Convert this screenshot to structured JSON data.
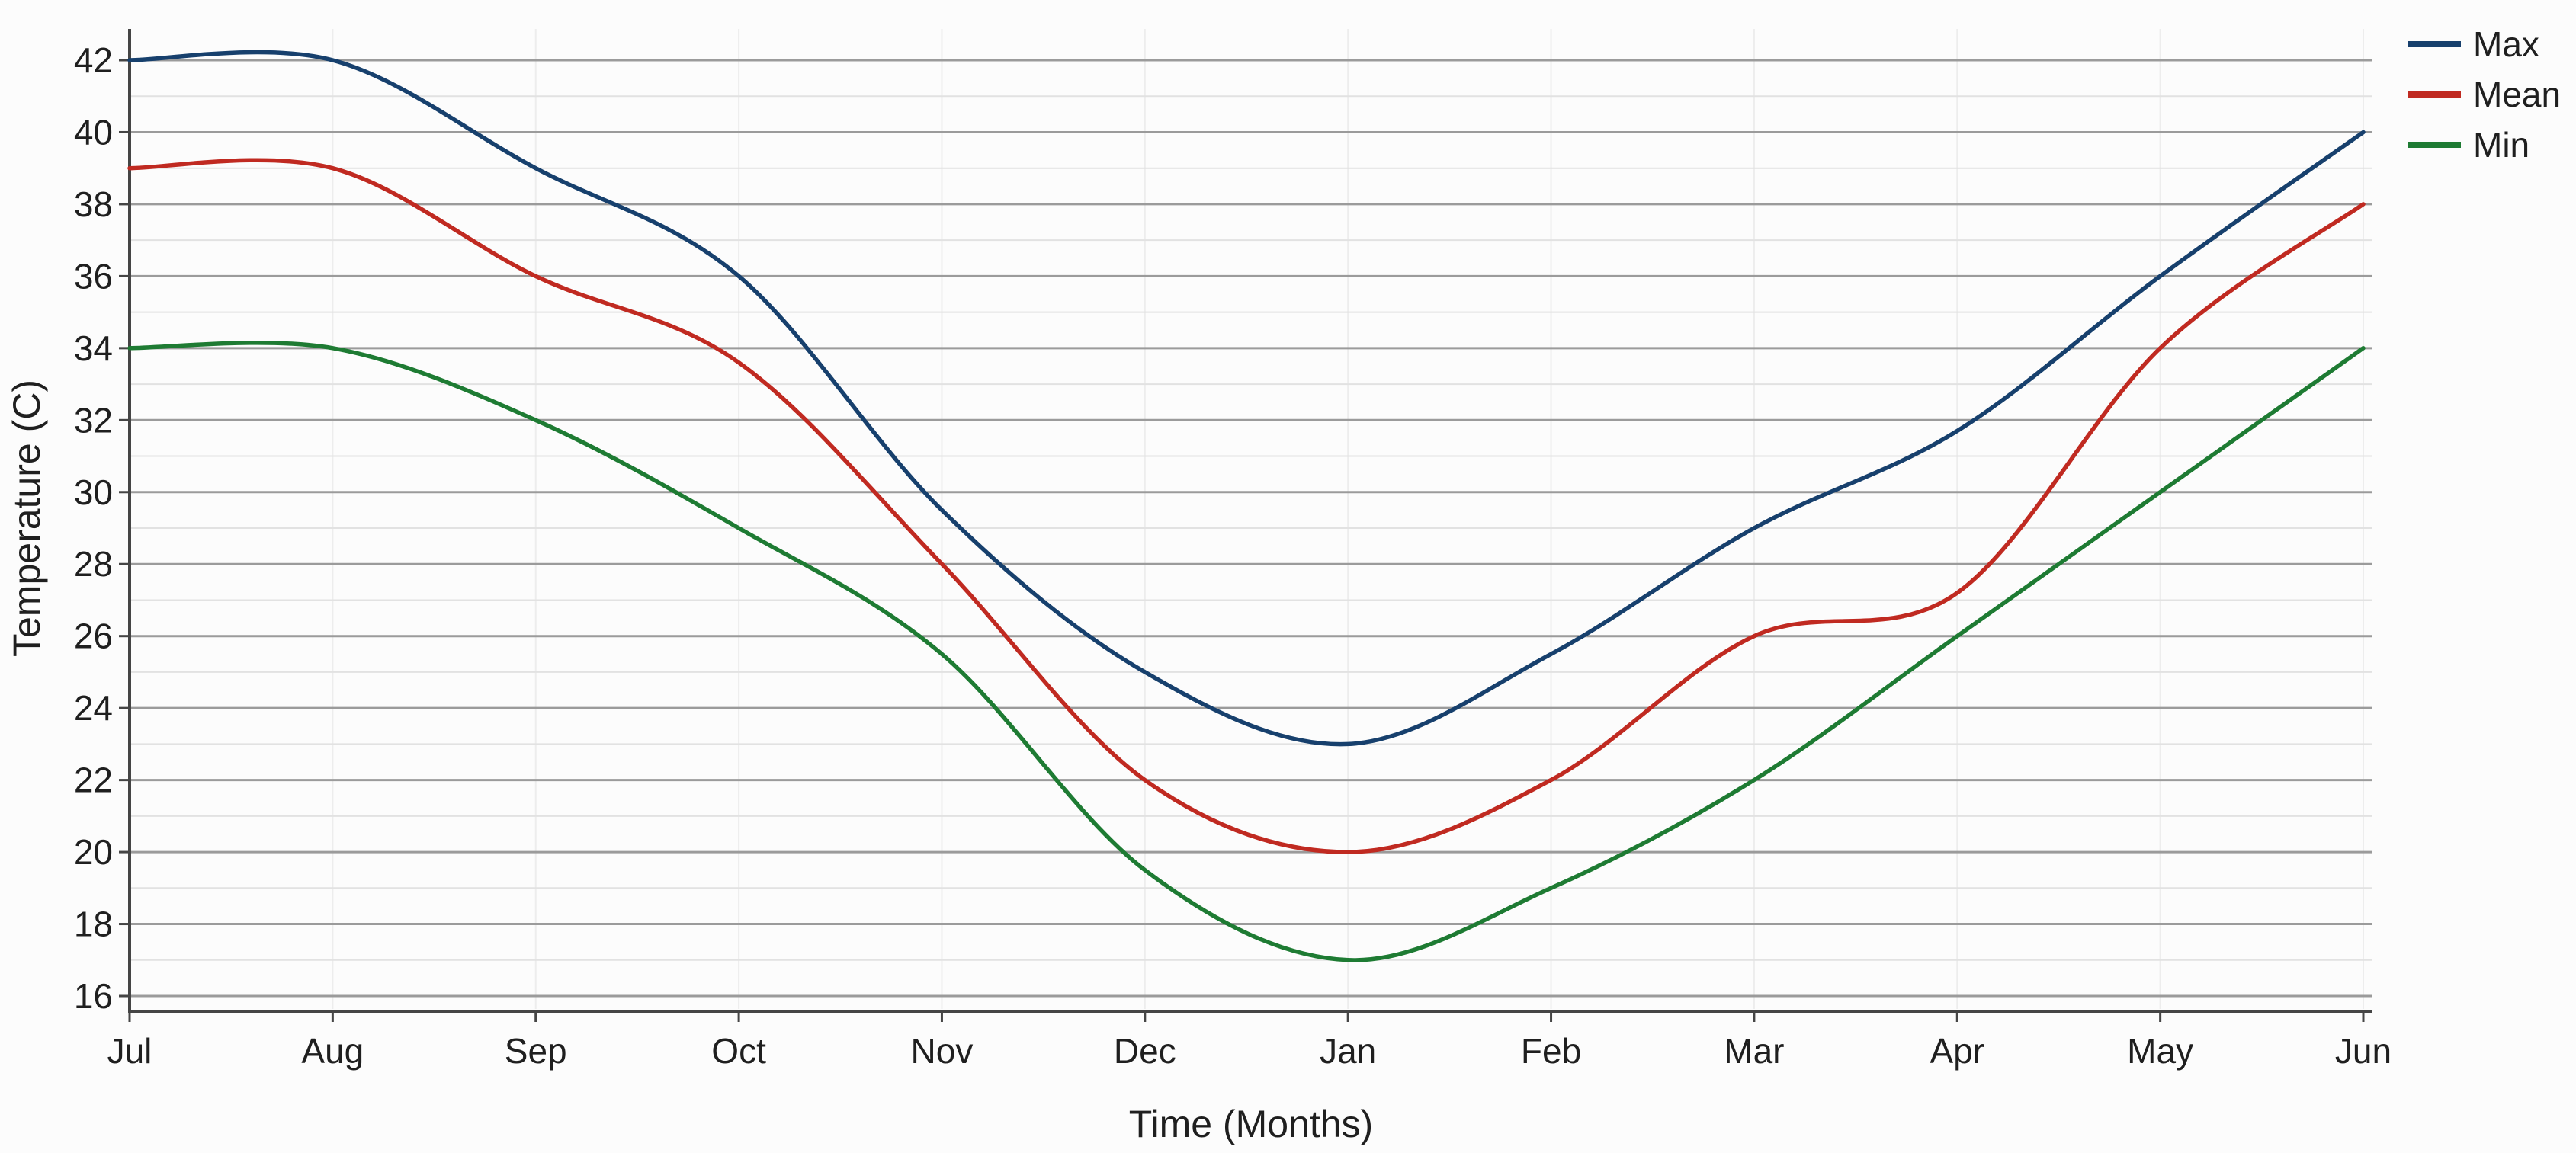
{
  "chart_data": {
    "type": "line",
    "title": "",
    "xlabel": "Time (Months)",
    "ylabel": "Temperature (C)",
    "categories": [
      "Jul",
      "Aug",
      "Sep",
      "Oct",
      "Nov",
      "Dec",
      "Jan",
      "Feb",
      "Mar",
      "Apr",
      "May",
      "Jun"
    ],
    "series": [
      {
        "name": "Max",
        "color": "#17406d",
        "values": [
          42,
          42,
          39,
          36,
          29.5,
          25,
          23,
          25.5,
          29,
          31.7,
          36,
          40
        ]
      },
      {
        "name": "Mean",
        "color": "#c02a21",
        "values": [
          39,
          39,
          36,
          33.6,
          28,
          22,
          20,
          22,
          26,
          27.2,
          34,
          38
        ]
      },
      {
        "name": "Min",
        "color": "#1e7b33",
        "values": [
          34,
          34,
          32,
          29,
          25.5,
          19.5,
          17,
          19,
          22,
          26,
          30,
          34
        ]
      }
    ],
    "ylim": [
      16,
      42
    ],
    "ytick_step": 2,
    "ytick_labels": [
      "16",
      "18",
      "20",
      "22",
      "24",
      "26",
      "28",
      "30",
      "32",
      "34",
      "36",
      "38",
      "40",
      "42"
    ],
    "grid": {
      "major_h": "on",
      "minor_h": "on",
      "vertical_per_month": "on"
    },
    "legend_position": "top-right-outside",
    "colors": {
      "major_grid": "#9b9b9b",
      "minor_grid": "#e2e2e2",
      "vertical_grid": "#ededed",
      "axis_line": "#454545",
      "text": "#1f1f1f",
      "background": "#fcfcfc"
    }
  }
}
